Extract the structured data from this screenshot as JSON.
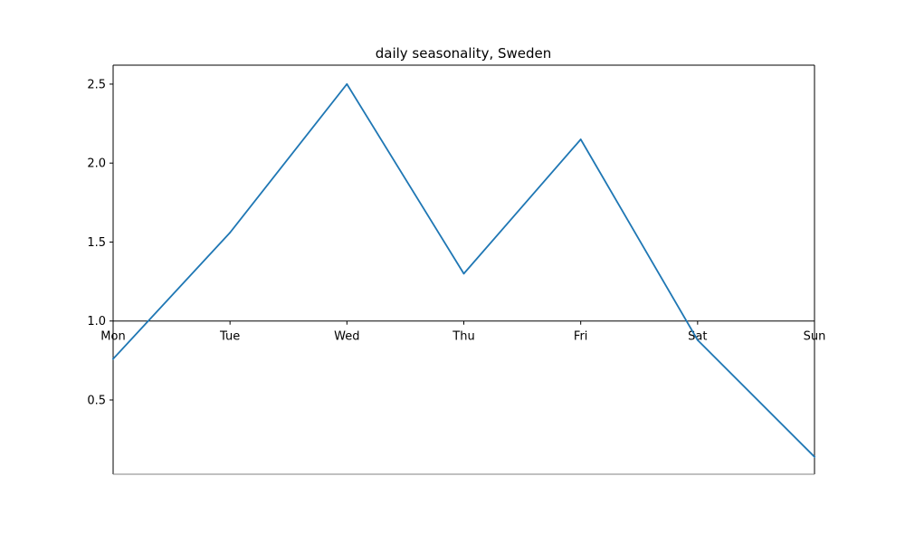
{
  "chart_data": {
    "type": "line",
    "title": "daily seasonality, Sweden",
    "xlabel": "",
    "ylabel": "",
    "categories": [
      "Mon",
      "Tue",
      "Wed",
      "Thu",
      "Fri",
      "Sat",
      "Sun"
    ],
    "series": [
      {
        "values": [
          0.76,
          1.56,
          2.5,
          1.3,
          2.15,
          0.88,
          0.14
        ],
        "color": "#1f77b4"
      }
    ],
    "ylim": [
      0.03,
      2.62
    ],
    "yticks": [
      0.5,
      1.0,
      1.5,
      2.0,
      2.5
    ],
    "ytick_labels": [
      "0.5",
      "1.0",
      "1.5",
      "2.0",
      "2.5"
    ],
    "x_axis_at": 1.0,
    "grid": false,
    "legend": "none"
  }
}
